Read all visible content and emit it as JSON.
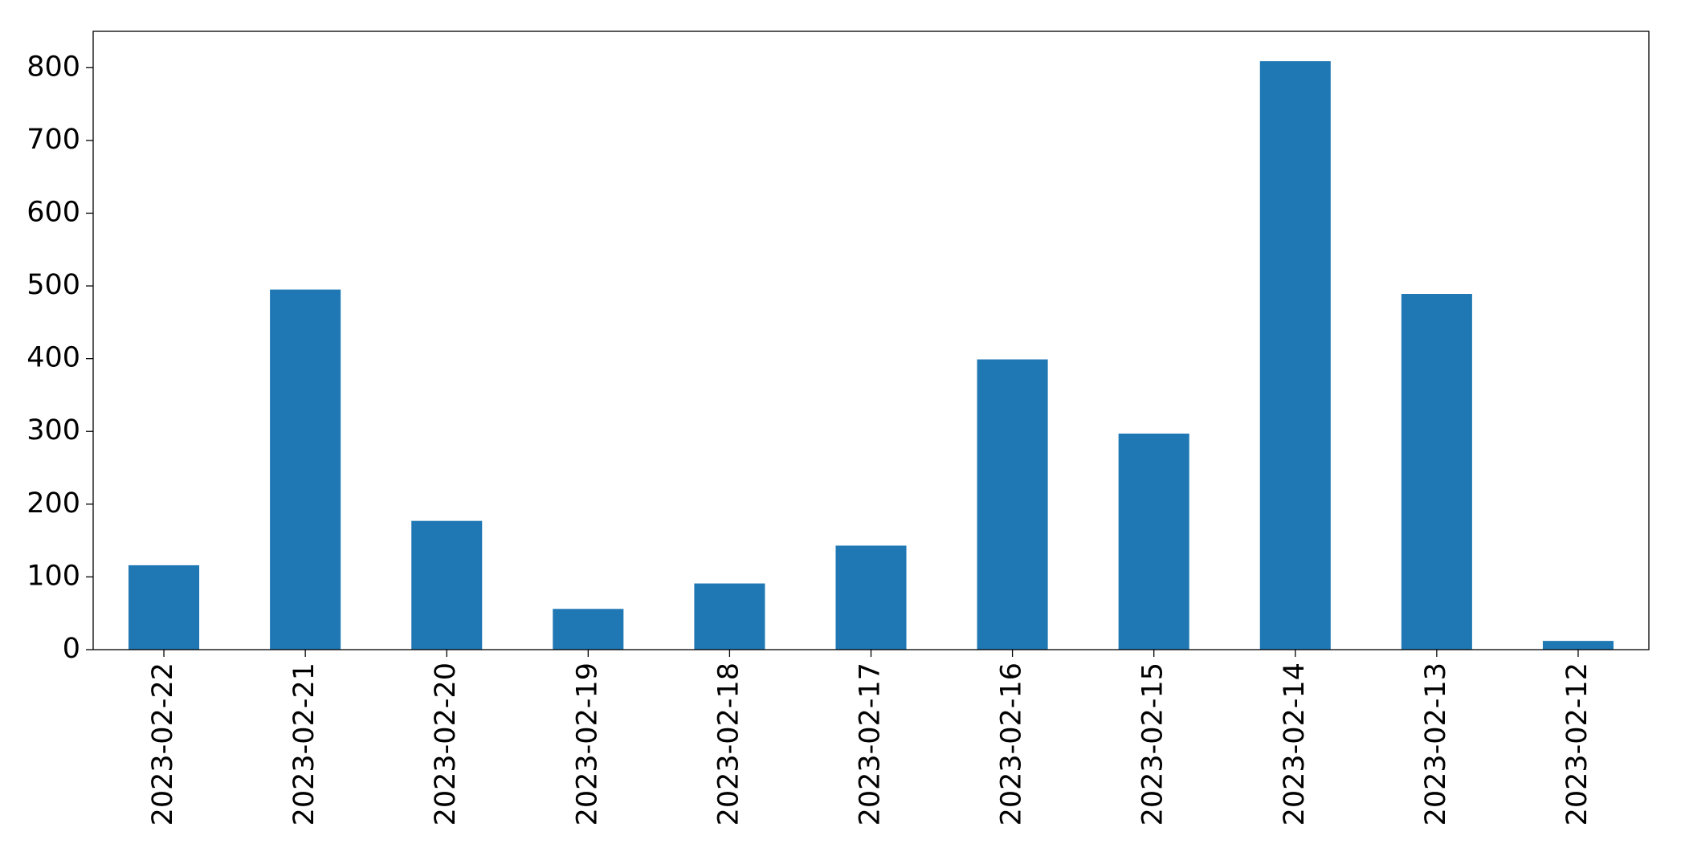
{
  "chart_data": {
    "type": "bar",
    "categories": [
      "2023-02-22",
      "2023-02-21",
      "2023-02-20",
      "2023-02-19",
      "2023-02-18",
      "2023-02-17",
      "2023-02-16",
      "2023-02-15",
      "2023-02-14",
      "2023-02-13",
      "2023-02-12"
    ],
    "values": [
      116,
      495,
      177,
      56,
      91,
      143,
      399,
      297,
      809,
      489,
      12
    ],
    "color": "#1f77b4",
    "ylim": [
      0,
      850
    ],
    "yticks": [
      0,
      100,
      200,
      300,
      400,
      500,
      600,
      700,
      800
    ],
    "grid": false
  }
}
